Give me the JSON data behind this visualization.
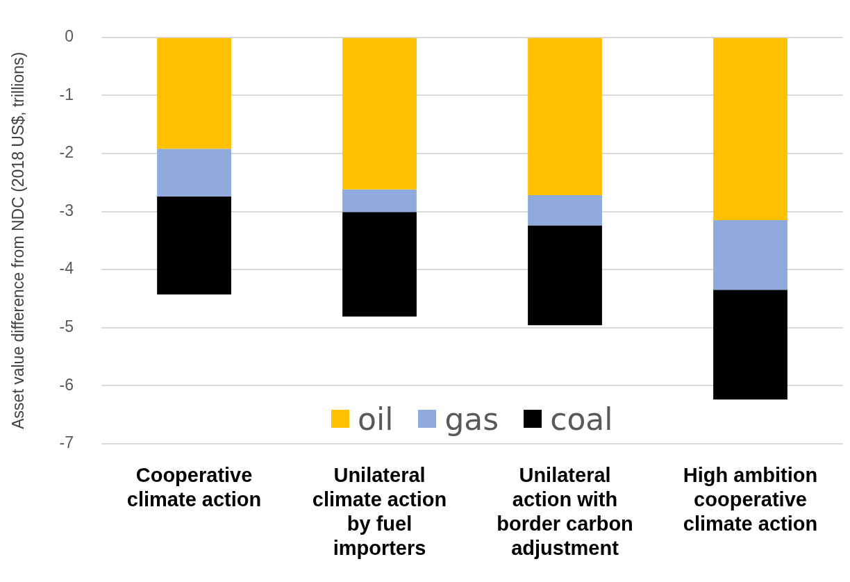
{
  "chart_data": {
    "type": "bar",
    "stacked": true,
    "ylabel": "Asset value difference from NDC (2018 US$, trillions)",
    "categories": [
      "Cooperative climate action",
      "Unilateral climate action by fuel importers",
      "Unilateral action with border carbon adjustment",
      "High ambition cooperative climate action"
    ],
    "series": [
      {
        "name": "oil",
        "color": "#ffc000",
        "values": [
          -1.92,
          -2.62,
          -2.72,
          -3.15
        ]
      },
      {
        "name": "gas",
        "color": "#8faadc",
        "values": [
          -0.82,
          -0.39,
          -0.52,
          -1.2
        ]
      },
      {
        "name": "coal",
        "color": "#000000",
        "values": [
          -1.69,
          -1.8,
          -1.72,
          -1.89
        ]
      }
    ],
    "ylim": [
      -7,
      0
    ],
    "yticks": [
      -7,
      -6,
      -5,
      -4,
      -3,
      -2,
      -1,
      0
    ],
    "grid": "y",
    "legend": "bottom"
  }
}
